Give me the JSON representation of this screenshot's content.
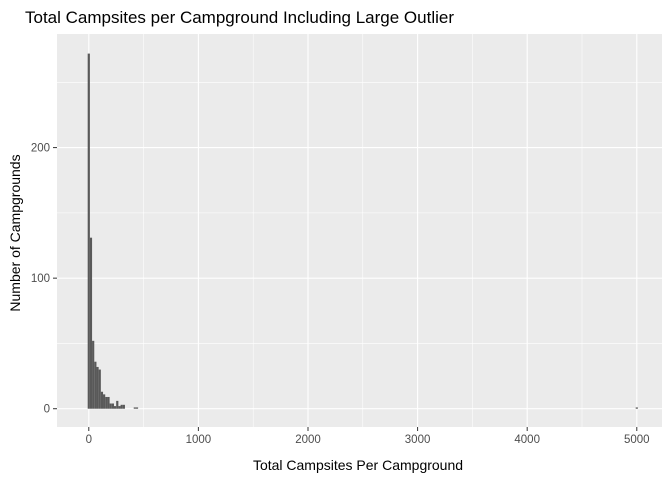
{
  "chart_data": {
    "type": "bar",
    "subtype": "histogram",
    "title": "Total Campsites per Campground Including Large Outlier",
    "xlabel": "Total Campsites Per Campground",
    "ylabel": "Number of Campgrounds",
    "xlim": [
      -290,
      5230
    ],
    "ylim": [
      -14,
      287
    ],
    "xticks": [
      0,
      1000,
      2000,
      3000,
      4000,
      5000
    ],
    "xtick_labels": [
      "0",
      "1000",
      "2000",
      "3000",
      "4000",
      "5000"
    ],
    "yticks": [
      0,
      100,
      200
    ],
    "ytick_labels": [
      "0",
      "100",
      "200"
    ],
    "grid": true,
    "legend": "none",
    "bin_width": 20,
    "bins": [
      {
        "x0": -10,
        "x1": 10,
        "count": 272
      },
      {
        "x0": 10,
        "x1": 30,
        "count": 131
      },
      {
        "x0": 30,
        "x1": 50,
        "count": 52
      },
      {
        "x0": 50,
        "x1": 70,
        "count": 36
      },
      {
        "x0": 70,
        "x1": 90,
        "count": 32
      },
      {
        "x0": 90,
        "x1": 110,
        "count": 30
      },
      {
        "x0": 110,
        "x1": 130,
        "count": 13
      },
      {
        "x0": 130,
        "x1": 150,
        "count": 11
      },
      {
        "x0": 150,
        "x1": 170,
        "count": 9
      },
      {
        "x0": 170,
        "x1": 190,
        "count": 9
      },
      {
        "x0": 190,
        "x1": 210,
        "count": 4
      },
      {
        "x0": 210,
        "x1": 230,
        "count": 4
      },
      {
        "x0": 230,
        "x1": 250,
        "count": 2
      },
      {
        "x0": 250,
        "x1": 270,
        "count": 6
      },
      {
        "x0": 270,
        "x1": 290,
        "count": 2
      },
      {
        "x0": 290,
        "x1": 310,
        "count": 3
      },
      {
        "x0": 310,
        "x1": 330,
        "count": 3
      },
      {
        "x0": 410,
        "x1": 430,
        "count": 1
      },
      {
        "x0": 430,
        "x1": 450,
        "count": 1
      },
      {
        "x0": 4990,
        "x1": 5010,
        "count": 1
      }
    ],
    "colors": {
      "panel": "#ebebeb",
      "grid_major": "#ffffff",
      "grid_minor": "#f5f5f5",
      "bar": "#595959",
      "tick": "#333333"
    }
  }
}
